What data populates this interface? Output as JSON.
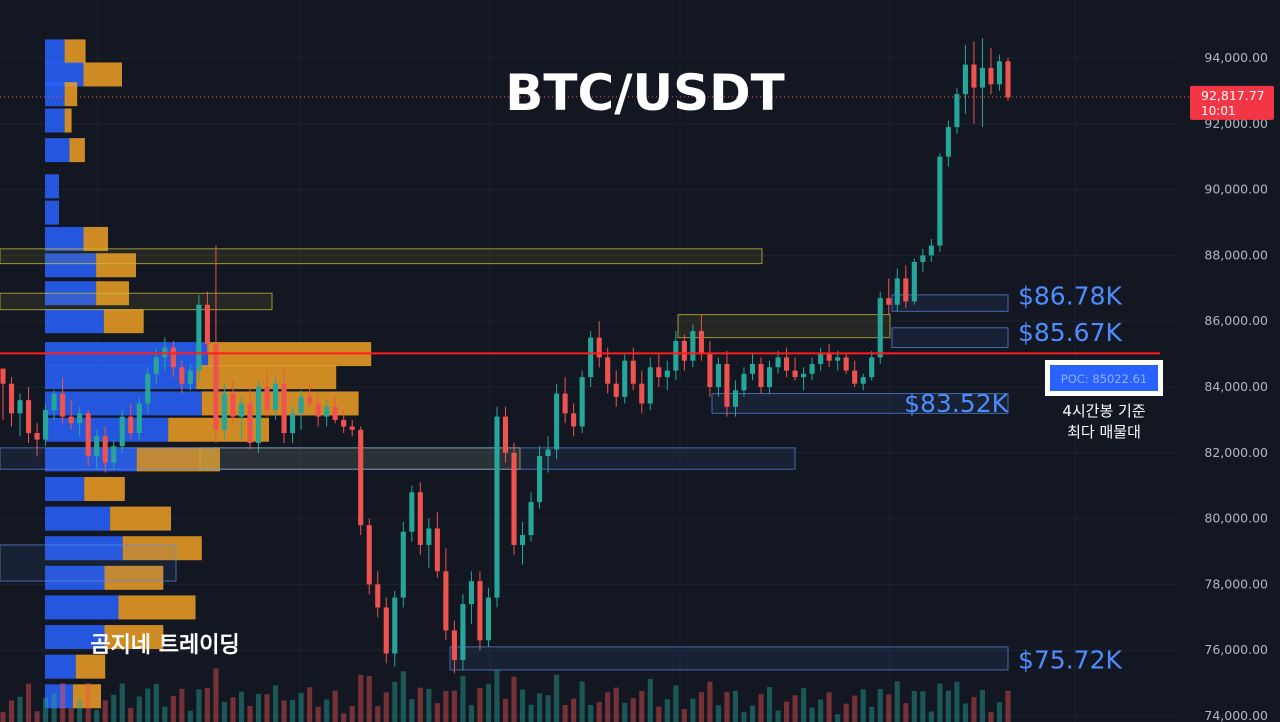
{
  "colors": {
    "background": "#131722",
    "grid": "#1e2230",
    "bull": "#26a69a",
    "bear": "#ef5350",
    "vp_up": "#2962ff",
    "vp_down": "#f0a023",
    "accent": "#4d8dff",
    "poc_line": "#ff1e1e",
    "last_price_bg": "#f23645"
  },
  "chart_data": {
    "type": "candlestick",
    "title": "BTC/USDT",
    "axis": {
      "side": "right",
      "ylim": [
        73800,
        95800
      ],
      "ticks": [
        94000,
        92000,
        90000,
        88000,
        86000,
        84000,
        82000,
        80000,
        78000,
        76000,
        74000
      ],
      "tick_labels": [
        "94,000.00",
        "92,000.00",
        "90,000.00",
        "88,000.00",
        "86,000.00",
        "84,000.00",
        "82,000.00",
        "80,000.00",
        "78,000.00",
        "76,000.00",
        "74,000.00"
      ]
    },
    "last_price": {
      "value": 92817.77,
      "label": "92,817.77",
      "countdown": "10:01"
    },
    "poc": {
      "value": 85022.61,
      "label": "POC: 85022.61",
      "caption_line1": "4시간봉 기준",
      "caption_line2": "최다 매물대"
    },
    "levels": [
      {
        "value": 86780,
        "label": "$86.78K"
      },
      {
        "value": 85670,
        "label": "$85.67K"
      },
      {
        "value": 83520,
        "label": "$83.52K"
      },
      {
        "value": 75720,
        "label": "$75.72K"
      }
    ],
    "watermark": "곰지네 트레이딩",
    "candles": [
      [
        84560,
        84400,
        83000,
        84100
      ],
      [
        84100,
        84300,
        82800,
        83200
      ],
      [
        83200,
        83800,
        82500,
        83600
      ],
      [
        83600,
        84000,
        82300,
        82600
      ],
      [
        82600,
        82900,
        81900,
        82400
      ],
      [
        82400,
        83500,
        82200,
        83300
      ],
      [
        83300,
        83900,
        83000,
        83800
      ],
      [
        83800,
        84300,
        82900,
        83100
      ],
      [
        83100,
        83600,
        82700,
        82900
      ],
      [
        82900,
        83400,
        82500,
        83200
      ],
      [
        83200,
        83300,
        81600,
        81900
      ],
      [
        81900,
        82700,
        81500,
        82500
      ],
      [
        82500,
        82800,
        81400,
        81700
      ],
      [
        81700,
        82400,
        81500,
        82200
      ],
      [
        82200,
        83300,
        82000,
        83100
      ],
      [
        83100,
        83500,
        82400,
        82600
      ],
      [
        82600,
        83700,
        82400,
        83500
      ],
      [
        83500,
        84600,
        83200,
        84400
      ],
      [
        84400,
        85200,
        84100,
        84900
      ],
      [
        84900,
        85500,
        84500,
        85200
      ],
      [
        85200,
        85400,
        84300,
        84600
      ],
      [
        84600,
        84800,
        83800,
        84100
      ],
      [
        84100,
        84700,
        83900,
        84500
      ],
      [
        84500,
        86800,
        84200,
        86500
      ],
      [
        86500,
        86900,
        85000,
        85300
      ],
      [
        85300,
        88300,
        82300,
        82700
      ],
      [
        82700,
        84100,
        82400,
        83800
      ],
      [
        83800,
        84200,
        82900,
        83100
      ],
      [
        83100,
        83700,
        82400,
        83500
      ],
      [
        83500,
        84000,
        82100,
        82300
      ],
      [
        82300,
        84200,
        82000,
        84000
      ],
      [
        84000,
        84500,
        83100,
        83300
      ],
      [
        83300,
        84300,
        83000,
        84100
      ],
      [
        84100,
        84500,
        82300,
        82600
      ],
      [
        82600,
        83400,
        82300,
        83200
      ],
      [
        83200,
        83900,
        82700,
        83700
      ],
      [
        83700,
        84100,
        83300,
        83500
      ],
      [
        83500,
        83800,
        82800,
        83100
      ],
      [
        83100,
        83600,
        82800,
        83400
      ],
      [
        83400,
        83700,
        82900,
        83000
      ],
      [
        83000,
        83300,
        82600,
        82800
      ],
      [
        82800,
        83000,
        82500,
        82700
      ],
      [
        82700,
        82800,
        79500,
        79800
      ],
      [
        79800,
        80000,
        77700,
        78000
      ],
      [
        78000,
        78400,
        77000,
        77300
      ],
      [
        77300,
        77600,
        75600,
        75900
      ],
      [
        75900,
        77800,
        75500,
        77600
      ],
      [
        77600,
        79900,
        77300,
        79600
      ],
      [
        79600,
        81000,
        79300,
        80800
      ],
      [
        80800,
        81100,
        78900,
        79200
      ],
      [
        79200,
        80000,
        78500,
        79700
      ],
      [
        79700,
        80200,
        78200,
        78400
      ],
      [
        78400,
        79100,
        76300,
        76600
      ],
      [
        76600,
        76900,
        75300,
        75700
      ],
      [
        75700,
        77700,
        75400,
        77400
      ],
      [
        77400,
        78400,
        76800,
        78100
      ],
      [
        78100,
        78400,
        76000,
        76300
      ],
      [
        76300,
        77900,
        76100,
        77600
      ],
      [
        77600,
        83400,
        77300,
        83100
      ],
      [
        83100,
        83400,
        81700,
        82000
      ],
      [
        82000,
        82300,
        78900,
        79200
      ],
      [
        79200,
        79900,
        78600,
        79500
      ],
      [
        79500,
        80800,
        79300,
        80500
      ],
      [
        80500,
        82200,
        80300,
        81900
      ],
      [
        81900,
        82500,
        81400,
        82100
      ],
      [
        82100,
        84100,
        81800,
        83800
      ],
      [
        83800,
        84300,
        82900,
        83200
      ],
      [
        83200,
        83500,
        82500,
        82800
      ],
      [
        82800,
        84500,
        82600,
        84300
      ],
      [
        84300,
        85700,
        84000,
        85500
      ],
      [
        85500,
        86000,
        84600,
        84900
      ],
      [
        84900,
        85200,
        83800,
        84100
      ],
      [
        84100,
        84500,
        83400,
        83700
      ],
      [
        83700,
        85000,
        83500,
        84800
      ],
      [
        84800,
        85200,
        83900,
        84100
      ],
      [
        84100,
        84500,
        83200,
        83500
      ],
      [
        83500,
        84900,
        83300,
        84600
      ],
      [
        84600,
        85000,
        84000,
        84300
      ],
      [
        84300,
        84800,
        83900,
        84500
      ],
      [
        84500,
        85700,
        84200,
        85400
      ],
      [
        85400,
        85600,
        84500,
        84800
      ],
      [
        84800,
        85900,
        84600,
        85700
      ],
      [
        85700,
        86200,
        84800,
        85000
      ],
      [
        85000,
        85400,
        83700,
        84000
      ],
      [
        84000,
        84900,
        83700,
        84700
      ],
      [
        84700,
        85100,
        83100,
        83400
      ],
      [
        83400,
        84200,
        83100,
        83900
      ],
      [
        83900,
        84600,
        83700,
        84400
      ],
      [
        84400,
        85000,
        84200,
        84700
      ],
      [
        84700,
        84900,
        83800,
        84000
      ],
      [
        84000,
        84800,
        83800,
        84600
      ],
      [
        84600,
        85100,
        84400,
        84900
      ],
      [
        84900,
        85200,
        84300,
        84500
      ],
      [
        84500,
        84900,
        84200,
        84300
      ],
      [
        84300,
        84600,
        83900,
        84400
      ],
      [
        84400,
        84900,
        84200,
        84700
      ],
      [
        84700,
        85200,
        84500,
        85000
      ],
      [
        85000,
        85300,
        84600,
        84800
      ],
      [
        84800,
        85100,
        84500,
        84900
      ],
      [
        84900,
        85000,
        84400,
        84500
      ],
      [
        84500,
        84800,
        84000,
        84100
      ],
      [
        84100,
        84400,
        83900,
        84300
      ],
      [
        84300,
        85100,
        84200,
        84900
      ],
      [
        84900,
        86900,
        84700,
        86700
      ],
      [
        86700,
        87300,
        86200,
        86500
      ],
      [
        86500,
        87600,
        86300,
        87300
      ],
      [
        87300,
        87700,
        86400,
        86600
      ],
      [
        86600,
        87900,
        86500,
        87800
      ],
      [
        87800,
        88200,
        87500,
        88000
      ],
      [
        88000,
        88500,
        87800,
        88300
      ],
      [
        88300,
        91100,
        88100,
        91000
      ],
      [
        91000,
        92100,
        90700,
        91900
      ],
      [
        91900,
        93100,
        91700,
        92900
      ],
      [
        92900,
        94400,
        92300,
        93800
      ],
      [
        93800,
        94500,
        92000,
        93100
      ],
      [
        93100,
        94600,
        91900,
        93700
      ],
      [
        93700,
        94300,
        92900,
        93200
      ],
      [
        93200,
        94100,
        93000,
        93900
      ],
      [
        93900,
        94000,
        92700,
        92800
      ]
    ],
    "volume_profile": [
      {
        "price": 94200,
        "up": 0.28,
        "down": 0.3
      },
      {
        "price": 93500,
        "up": 0.55,
        "down": 0.55
      },
      {
        "price": 92900,
        "up": 0.28,
        "down": 0.18
      },
      {
        "price": 92100,
        "up": 0.28,
        "down": 0.1
      },
      {
        "price": 91200,
        "up": 0.35,
        "down": 0.22
      },
      {
        "price": 90100,
        "up": 0.2,
        "down": 0.0
      },
      {
        "price": 89300,
        "up": 0.2,
        "down": 0.0
      },
      {
        "price": 88500,
        "up": 0.55,
        "down": 0.35
      },
      {
        "price": 87700,
        "up": 0.73,
        "down": 0.57
      },
      {
        "price": 86850,
        "up": 0.73,
        "down": 0.47
      },
      {
        "price": 86000,
        "up": 0.84,
        "down": 0.57
      },
      {
        "price": 85000,
        "up": 2.33,
        "down": 2.33
      },
      {
        "price": 84300,
        "up": 2.16,
        "down": 2.0
      },
      {
        "price": 83500,
        "up": 2.24,
        "down": 2.24
      },
      {
        "price": 82700,
        "up": 1.76,
        "down": 1.44
      },
      {
        "price": 81800,
        "up": 1.31,
        "down": 1.19
      },
      {
        "price": 80900,
        "up": 0.56,
        "down": 0.58
      },
      {
        "price": 80000,
        "up": 0.93,
        "down": 0.87
      },
      {
        "price": 79100,
        "up": 1.11,
        "down": 1.13
      },
      {
        "price": 78200,
        "up": 0.85,
        "down": 0.84
      },
      {
        "price": 77300,
        "up": 1.05,
        "down": 1.1
      },
      {
        "price": 76400,
        "up": 0.85,
        "down": 0.84
      },
      {
        "price": 75500,
        "up": 0.44,
        "down": 0.42
      },
      {
        "price": 74600,
        "up": 0.4,
        "down": 0.4
      }
    ],
    "zones": [
      {
        "top": 88200,
        "bottom": 87750,
        "color": "yellow",
        "extends": "left-to-mid"
      },
      {
        "top": 86850,
        "bottom": 86350,
        "color": "yellow",
        "extends": "short"
      },
      {
        "top": 86200,
        "bottom": 85500,
        "color": "yellow",
        "extends": "mid"
      },
      {
        "top": 82150,
        "bottom": 81500,
        "color": "yellow",
        "extends": "left-to-mid"
      },
      {
        "top": 82150,
        "bottom": 81500,
        "color": "blue",
        "extends": "full-left"
      },
      {
        "top": 86800,
        "bottom": 86300,
        "color": "blue",
        "extends": "right"
      },
      {
        "top": 85800,
        "bottom": 85200,
        "color": "blue",
        "extends": "right"
      },
      {
        "top": 83800,
        "bottom": 83200,
        "color": "blue",
        "extends": "right"
      },
      {
        "top": 76100,
        "bottom": 75400,
        "color": "blue",
        "extends": "right"
      },
      {
        "top": 79200,
        "bottom": 78100,
        "color": "blue",
        "extends": "left"
      }
    ]
  }
}
